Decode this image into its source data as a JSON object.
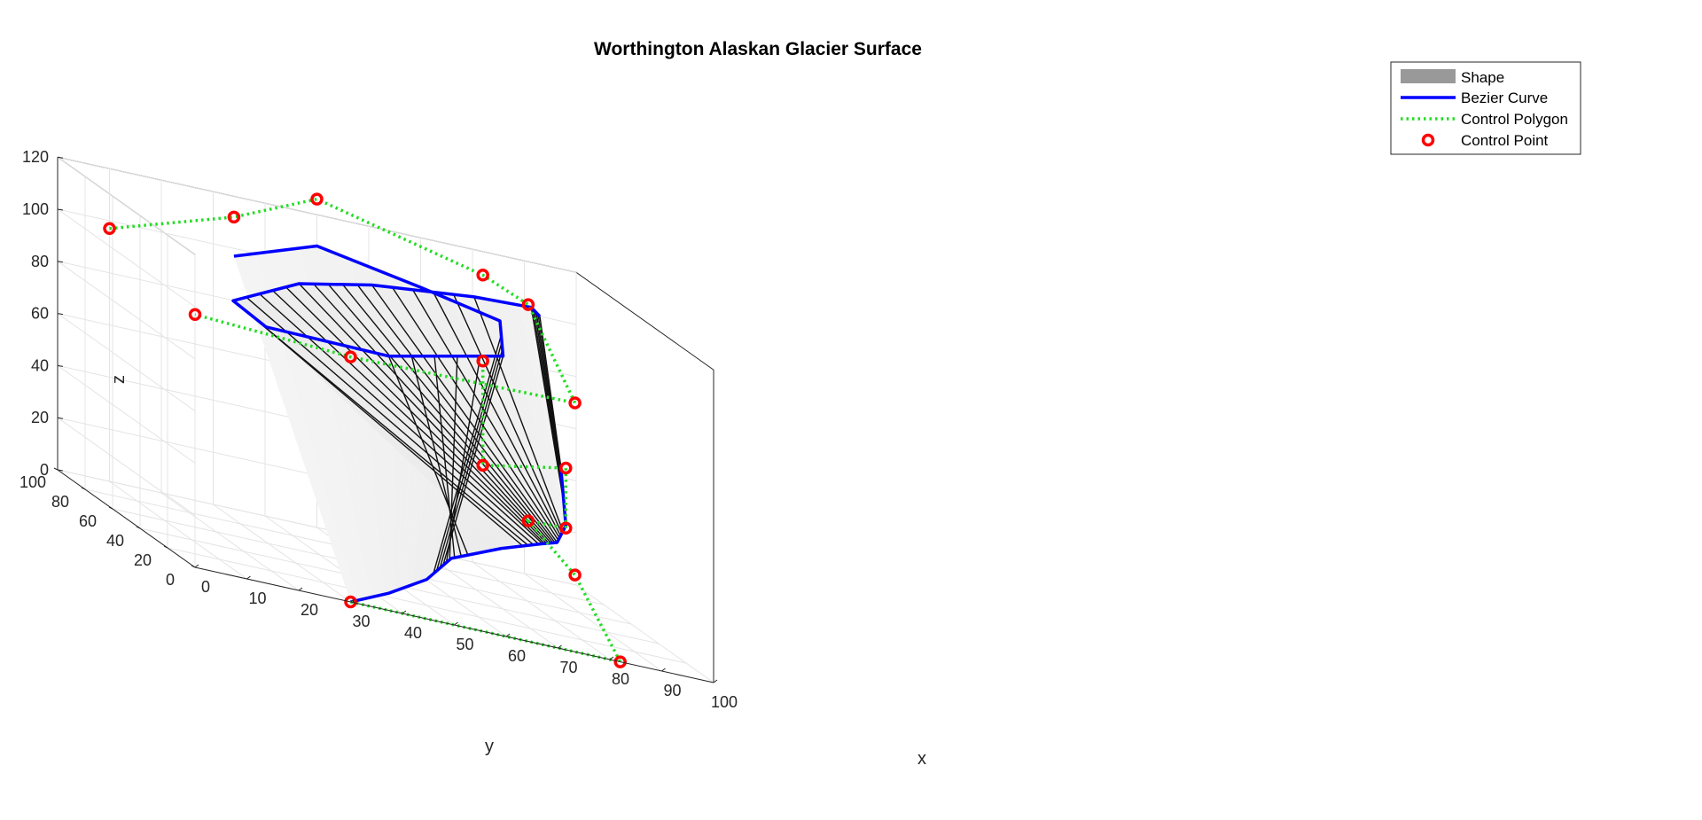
{
  "chart_data": {
    "type": "surface",
    "title": "Worthington Alaskan Glacier Surface",
    "xlabel": "x",
    "ylabel": "y",
    "zlabel": "z",
    "xlim": [
      0,
      100
    ],
    "ylim": [
      0,
      100
    ],
    "zlim": [
      0,
      120
    ],
    "x_ticks": [
      "0",
      "10",
      "20",
      "30",
      "40",
      "50",
      "60",
      "70",
      "80",
      "90",
      "100"
    ],
    "y_ticks": [
      "0",
      "20",
      "40",
      "60",
      "80",
      "100"
    ],
    "z_ticks": [
      "0",
      "20",
      "40",
      "60",
      "80",
      "100",
      "120"
    ],
    "grid": true,
    "legend_position": "top-right",
    "legend": [
      "Shape",
      "Bezier Curve",
      "Control Polygon",
      "Control Point"
    ],
    "colors": {
      "shape": "#999999",
      "bezier_curve": "#0000ff",
      "control_polygon": "#22dd22",
      "control_point": "#ff0000"
    },
    "control_polygons": [
      {
        "name": "top",
        "points": [
          [
            10,
            100,
            97
          ],
          [
            34,
            100,
            112
          ],
          [
            50,
            100,
            126
          ],
          [
            82,
            100,
            111
          ],
          [
            82,
            67,
            112
          ],
          [
            82,
            33,
            87
          ],
          [
            30,
            0,
            94
          ],
          [
            0,
            0,
            97
          ]
        ]
      },
      {
        "name": "bottom",
        "points": [
          [
            30,
            0,
            0
          ],
          [
            82,
            0,
            0
          ],
          [
            82,
            33,
            21
          ],
          [
            82,
            67,
            29
          ],
          [
            98,
            100,
            21
          ],
          [
            98,
            100,
            44
          ],
          [
            82,
            100,
            38
          ],
          [
            82,
            100,
            78
          ]
        ]
      }
    ],
    "bezier_curves": [
      {
        "name": "top-curve",
        "points": [
          [
            34,
            100,
            97
          ],
          [
            50,
            100,
            108
          ],
          [
            70,
            100,
            101
          ],
          [
            80,
            80,
            100
          ],
          [
            70,
            40,
            97
          ],
          [
            40,
            10,
            95
          ],
          [
            15,
            5,
            97
          ],
          [
            10,
            10,
            103
          ],
          [
            28,
            30,
            110
          ],
          [
            50,
            60,
            108
          ],
          [
            75,
            80,
            107
          ],
          [
            90,
            95,
            104
          ],
          [
            93,
            100,
            100
          ]
        ]
      },
      {
        "name": "bottom-curve",
        "points": [
          [
            30,
            0,
            0
          ],
          [
            40,
            10,
            4
          ],
          [
            50,
            20,
            10
          ],
          [
            60,
            40,
            15
          ],
          [
            75,
            60,
            18
          ],
          [
            88,
            80,
            18
          ],
          [
            95,
            95,
            16
          ],
          [
            98,
            100,
            22
          ],
          [
            97,
            100,
            45
          ]
        ]
      }
    ]
  }
}
